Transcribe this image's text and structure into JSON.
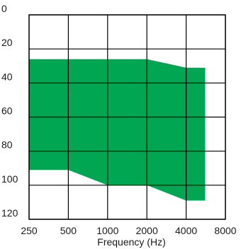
{
  "chart_data": {
    "type": "area",
    "title": "",
    "xlabel": "Frequency (Hz)",
    "ylabel": "",
    "x_scale": "log2",
    "y_inverted": true,
    "x_ticks": [
      250,
      500,
      1000,
      2000,
      4000,
      8000
    ],
    "x_tick_labels": [
      "250",
      "500",
      "1000",
      "2000",
      "4000",
      "8000"
    ],
    "y_ticks": [
      0,
      20,
      40,
      60,
      80,
      100,
      120
    ],
    "y_tick_labels": [
      "0",
      "20",
      "40",
      "60",
      "80",
      "100",
      "120"
    ],
    "xlim": [
      250,
      8000
    ],
    "ylim": [
      0,
      120
    ],
    "grid": true,
    "fill_color": "#00a651",
    "series": [
      {
        "upper": [
          {
            "x": 250,
            "y": 26
          },
          {
            "x": 2000,
            "y": 26
          },
          {
            "x": 4000,
            "y": 31
          },
          {
            "x": 5600,
            "y": 31
          }
        ],
        "lower": [
          {
            "x": 250,
            "y": 91
          },
          {
            "x": 500,
            "y": 91
          },
          {
            "x": 1000,
            "y": 100
          },
          {
            "x": 2000,
            "y": 100
          },
          {
            "x": 4000,
            "y": 109
          },
          {
            "x": 5600,
            "y": 109
          }
        ]
      }
    ]
  }
}
